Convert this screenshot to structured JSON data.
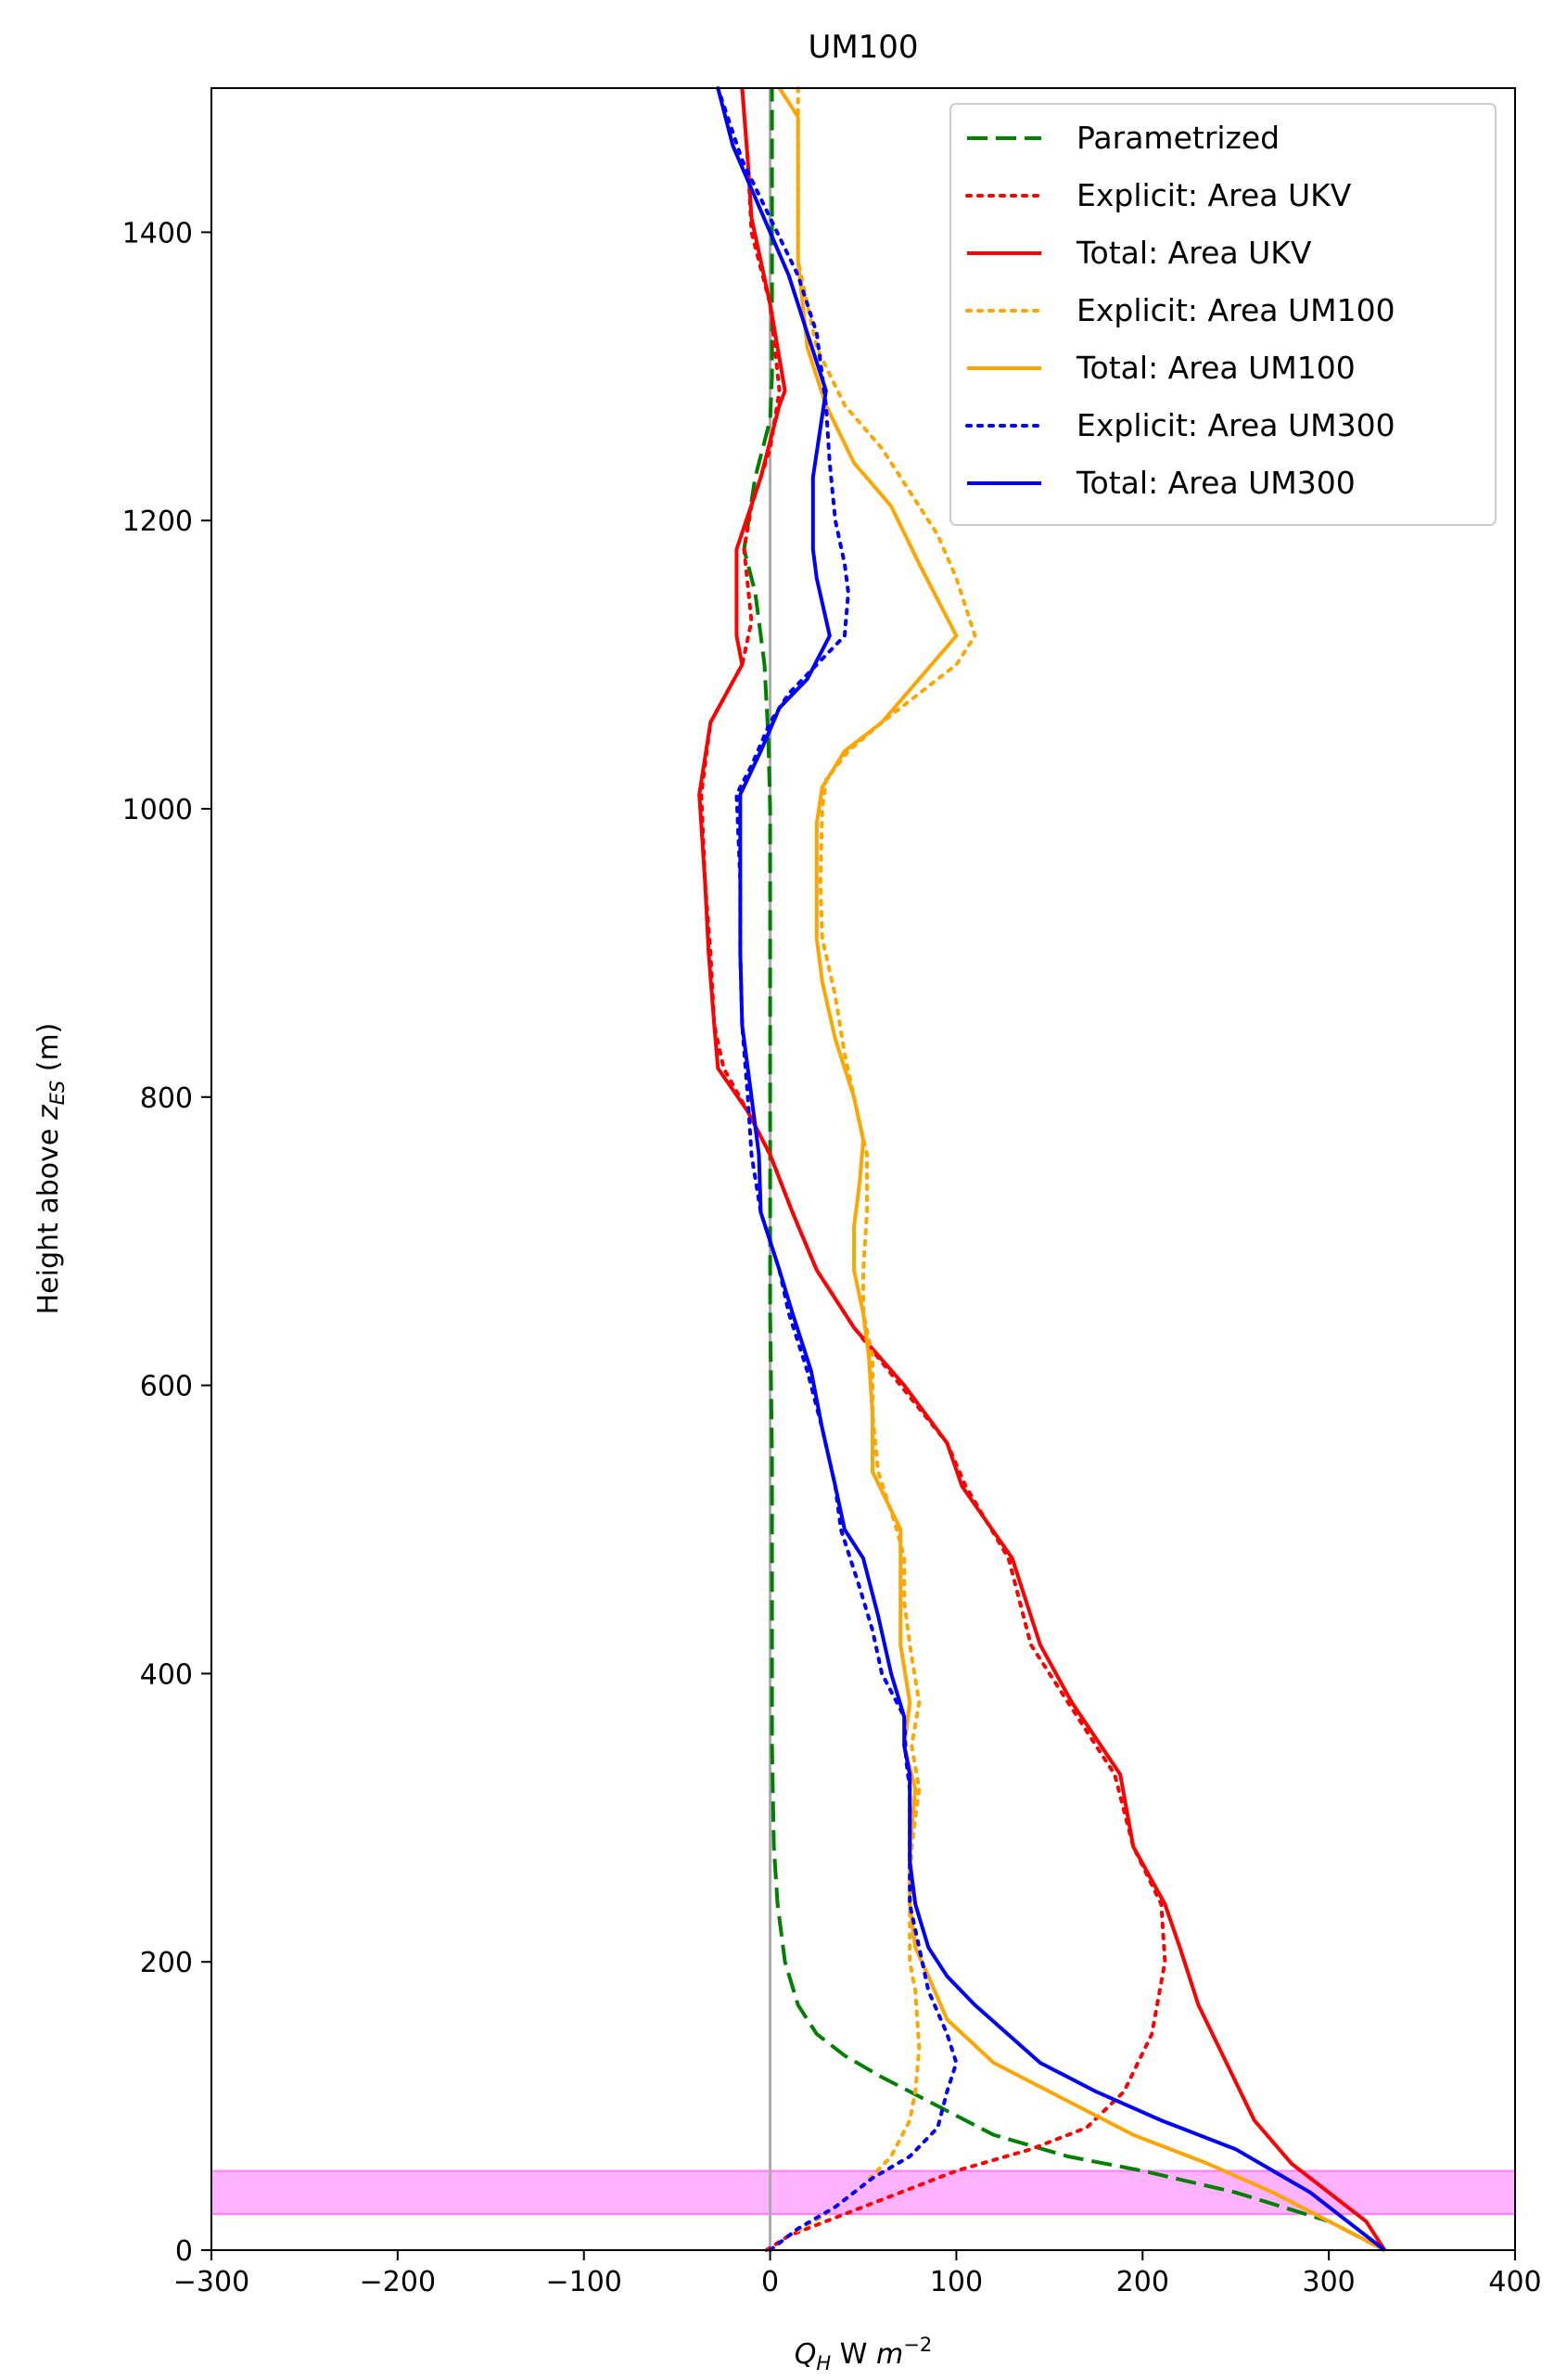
{
  "chart_data": {
    "type": "line",
    "title": "UM100",
    "xlabel_main": "Q",
    "xlabel_sub": "H",
    "xlabel_units": "W",
    "xlabel_unit_var": "m",
    "xlabel_unit_exp": "−2",
    "ylabel_main": "Height above ",
    "ylabel_var": "z",
    "ylabel_sub": "ES",
    "ylabel_units": " (m)",
    "xlim": [
      -300,
      400
    ],
    "ylim": [
      0,
      1500
    ],
    "xticks": [
      -300,
      -200,
      -100,
      0,
      100,
      200,
      300,
      400
    ],
    "xtick_labels": [
      "−300",
      "−200",
      "−100",
      "0",
      "100",
      "200",
      "300",
      "400"
    ],
    "yticks": [
      0,
      200,
      400,
      600,
      800,
      1000,
      1200,
      1400
    ],
    "ytick_labels": [
      "0",
      "200",
      "400",
      "600",
      "800",
      "1000",
      "1200",
      "1400"
    ],
    "grid": false,
    "legend_position": "top-right",
    "vline": {
      "x": 0,
      "color": "#aaaaaa"
    },
    "band": {
      "y0": 25,
      "y1": 55,
      "color": "#ff66ff"
    },
    "series": [
      {
        "name": "Parametrized",
        "color": "#008000",
        "style": "dashed",
        "points": [
          [
            330,
            0
          ],
          [
            300,
            20
          ],
          [
            250,
            40
          ],
          [
            200,
            55
          ],
          [
            160,
            65
          ],
          [
            120,
            80
          ],
          [
            90,
            100
          ],
          [
            60,
            120
          ],
          [
            40,
            135
          ],
          [
            25,
            150
          ],
          [
            15,
            170
          ],
          [
            8,
            200
          ],
          [
            4,
            240
          ],
          [
            2,
            280
          ],
          [
            1,
            350
          ],
          [
            1,
            450
          ],
          [
            1,
            550
          ],
          [
            0,
            650
          ],
          [
            0,
            700
          ],
          [
            0,
            800
          ],
          [
            0,
            900
          ],
          [
            0,
            1000
          ],
          [
            -1,
            1050
          ],
          [
            -3,
            1100
          ],
          [
            -8,
            1150
          ],
          [
            -14,
            1180
          ],
          [
            -8,
            1230
          ],
          [
            0,
            1270
          ],
          [
            1,
            1300
          ],
          [
            1,
            1350
          ],
          [
            1,
            1400
          ],
          [
            1,
            1450
          ],
          [
            1,
            1500
          ]
        ]
      },
      {
        "name": "Explicit: Area UKV",
        "color": "#ff0000",
        "style": "dotted",
        "points": [
          [
            -2,
            0
          ],
          [
            10,
            10
          ],
          [
            30,
            20
          ],
          [
            60,
            35
          ],
          [
            100,
            55
          ],
          [
            140,
            70
          ],
          [
            170,
            85
          ],
          [
            190,
            110
          ],
          [
            205,
            150
          ],
          [
            212,
            200
          ],
          [
            210,
            240
          ],
          [
            195,
            280
          ],
          [
            185,
            330
          ],
          [
            160,
            380
          ],
          [
            140,
            420
          ],
          [
            128,
            480
          ],
          [
            105,
            530
          ],
          [
            95,
            560
          ],
          [
            70,
            600
          ],
          [
            45,
            640
          ],
          [
            25,
            680
          ],
          [
            12,
            720
          ],
          [
            0,
            760
          ],
          [
            -12,
            790
          ],
          [
            -25,
            820
          ],
          [
            -30,
            850
          ],
          [
            -32,
            900
          ],
          [
            -35,
            950
          ],
          [
            -37,
            1010
          ],
          [
            -32,
            1060
          ],
          [
            -15,
            1100
          ],
          [
            -10,
            1130
          ],
          [
            -14,
            1180
          ],
          [
            -10,
            1210
          ],
          [
            0,
            1250
          ],
          [
            5,
            1290
          ],
          [
            0,
            1350
          ],
          [
            -10,
            1400
          ],
          [
            -12,
            1450
          ],
          [
            -15,
            1500
          ]
        ]
      },
      {
        "name": "Total: Area UKV",
        "color": "#ff0000",
        "style": "solid",
        "points": [
          [
            330,
            0
          ],
          [
            320,
            20
          ],
          [
            300,
            40
          ],
          [
            280,
            60
          ],
          [
            260,
            90
          ],
          [
            245,
            130
          ],
          [
            230,
            170
          ],
          [
            220,
            210
          ],
          [
            212,
            240
          ],
          [
            195,
            280
          ],
          [
            188,
            330
          ],
          [
            162,
            380
          ],
          [
            145,
            420
          ],
          [
            130,
            480
          ],
          [
            103,
            530
          ],
          [
            95,
            560
          ],
          [
            72,
            600
          ],
          [
            45,
            640
          ],
          [
            25,
            680
          ],
          [
            12,
            720
          ],
          [
            0,
            760
          ],
          [
            -12,
            790
          ],
          [
            -28,
            820
          ],
          [
            -30,
            850
          ],
          [
            -33,
            900
          ],
          [
            -35,
            950
          ],
          [
            -38,
            1010
          ],
          [
            -32,
            1060
          ],
          [
            -15,
            1100
          ],
          [
            -18,
            1120
          ],
          [
            -18,
            1150
          ],
          [
            -18,
            1180
          ],
          [
            -5,
            1230
          ],
          [
            5,
            1280
          ],
          [
            8,
            1290
          ],
          [
            0,
            1350
          ],
          [
            -10,
            1410
          ],
          [
            -12,
            1450
          ],
          [
            -15,
            1500
          ]
        ]
      },
      {
        "name": "Explicit: Area UM100",
        "color": "#ffa500",
        "style": "dotted",
        "points": [
          [
            0,
            0
          ],
          [
            10,
            10
          ],
          [
            30,
            25
          ],
          [
            50,
            45
          ],
          [
            65,
            65
          ],
          [
            75,
            90
          ],
          [
            78,
            110
          ],
          [
            80,
            140
          ],
          [
            78,
            180
          ],
          [
            75,
            200
          ],
          [
            75,
            240
          ],
          [
            76,
            280
          ],
          [
            80,
            320
          ],
          [
            76,
            350
          ],
          [
            80,
            380
          ],
          [
            75,
            420
          ],
          [
            72,
            450
          ],
          [
            72,
            480
          ],
          [
            68,
            500
          ],
          [
            58,
            540
          ],
          [
            55,
            580
          ],
          [
            55,
            620
          ],
          [
            50,
            650
          ],
          [
            50,
            680
          ],
          [
            52,
            720
          ],
          [
            52,
            760
          ],
          [
            45,
            800
          ],
          [
            40,
            830
          ],
          [
            35,
            870
          ],
          [
            28,
            910
          ],
          [
            27,
            950
          ],
          [
            28,
            1000
          ],
          [
            30,
            1020
          ],
          [
            42,
            1040
          ],
          [
            60,
            1060
          ],
          [
            80,
            1080
          ],
          [
            100,
            1100
          ],
          [
            110,
            1120
          ],
          [
            100,
            1160
          ],
          [
            90,
            1190
          ],
          [
            75,
            1220
          ],
          [
            60,
            1250
          ],
          [
            40,
            1280
          ],
          [
            25,
            1320
          ],
          [
            15,
            1380
          ],
          [
            15,
            1450
          ],
          [
            15,
            1500
          ]
        ]
      },
      {
        "name": "Total: Area UM100",
        "color": "#ffa500",
        "style": "solid",
        "points": [
          [
            330,
            0
          ],
          [
            300,
            20
          ],
          [
            270,
            40
          ],
          [
            235,
            60
          ],
          [
            195,
            80
          ],
          [
            150,
            110
          ],
          [
            120,
            130
          ],
          [
            95,
            160
          ],
          [
            85,
            190
          ],
          [
            78,
            210
          ],
          [
            75,
            240
          ],
          [
            75,
            280
          ],
          [
            78,
            320
          ],
          [
            72,
            350
          ],
          [
            75,
            380
          ],
          [
            70,
            420
          ],
          [
            70,
            450
          ],
          [
            70,
            480
          ],
          [
            70,
            500
          ],
          [
            55,
            540
          ],
          [
            55,
            580
          ],
          [
            53,
            620
          ],
          [
            50,
            650
          ],
          [
            45,
            680
          ],
          [
            45,
            710
          ],
          [
            48,
            740
          ],
          [
            50,
            770
          ],
          [
            45,
            800
          ],
          [
            35,
            840
          ],
          [
            28,
            880
          ],
          [
            25,
            910
          ],
          [
            25,
            950
          ],
          [
            25,
            990
          ],
          [
            28,
            1015
          ],
          [
            40,
            1040
          ],
          [
            60,
            1060
          ],
          [
            80,
            1090
          ],
          [
            100,
            1120
          ],
          [
            80,
            1170
          ],
          [
            65,
            1210
          ],
          [
            45,
            1240
          ],
          [
            30,
            1280
          ],
          [
            20,
            1320
          ],
          [
            15,
            1380
          ],
          [
            15,
            1430
          ],
          [
            15,
            1460
          ],
          [
            15,
            1480
          ],
          [
            5,
            1500
          ]
        ]
      },
      {
        "name": "Explicit: Area UM300",
        "color": "#0000ff",
        "style": "dotted",
        "points": [
          [
            0,
            0
          ],
          [
            15,
            15
          ],
          [
            35,
            30
          ],
          [
            55,
            50
          ],
          [
            75,
            65
          ],
          [
            90,
            85
          ],
          [
            95,
            110
          ],
          [
            100,
            130
          ],
          [
            95,
            150
          ],
          [
            85,
            180
          ],
          [
            80,
            210
          ],
          [
            75,
            240
          ],
          [
            75,
            280
          ],
          [
            75,
            320
          ],
          [
            73,
            340
          ],
          [
            72,
            370
          ],
          [
            60,
            400
          ],
          [
            55,
            430
          ],
          [
            48,
            460
          ],
          [
            38,
            500
          ],
          [
            35,
            530
          ],
          [
            28,
            570
          ],
          [
            20,
            610
          ],
          [
            10,
            650
          ],
          [
            5,
            680
          ],
          [
            -5,
            720
          ],
          [
            -10,
            760
          ],
          [
            -12,
            800
          ],
          [
            -15,
            850
          ],
          [
            -16,
            900
          ],
          [
            -16,
            950
          ],
          [
            -18,
            1010
          ],
          [
            -10,
            1030
          ],
          [
            0,
            1060
          ],
          [
            10,
            1080
          ],
          [
            25,
            1100
          ],
          [
            40,
            1120
          ],
          [
            42,
            1150
          ],
          [
            40,
            1170
          ],
          [
            35,
            1200
          ],
          [
            32,
            1240
          ],
          [
            30,
            1280
          ],
          [
            25,
            1330
          ],
          [
            15,
            1370
          ],
          [
            0,
            1410
          ],
          [
            -15,
            1450
          ],
          [
            -28,
            1500
          ]
        ]
      },
      {
        "name": "Total: Area UM300",
        "color": "#0000ff",
        "style": "solid",
        "points": [
          [
            330,
            0
          ],
          [
            310,
            20
          ],
          [
            290,
            40
          ],
          [
            270,
            55
          ],
          [
            250,
            70
          ],
          [
            210,
            90
          ],
          [
            175,
            110
          ],
          [
            145,
            130
          ],
          [
            110,
            170
          ],
          [
            95,
            190
          ],
          [
            85,
            210
          ],
          [
            78,
            240
          ],
          [
            75,
            270
          ],
          [
            75,
            300
          ],
          [
            75,
            330
          ],
          [
            72,
            350
          ],
          [
            72,
            370
          ],
          [
            65,
            400
          ],
          [
            58,
            440
          ],
          [
            50,
            480
          ],
          [
            40,
            500
          ],
          [
            35,
            530
          ],
          [
            28,
            570
          ],
          [
            22,
            610
          ],
          [
            12,
            650
          ],
          [
            5,
            680
          ],
          [
            -5,
            720
          ],
          [
            -6,
            760
          ],
          [
            -10,
            800
          ],
          [
            -15,
            850
          ],
          [
            -16,
            900
          ],
          [
            -16,
            950
          ],
          [
            -16,
            1010
          ],
          [
            -5,
            1040
          ],
          [
            5,
            1070
          ],
          [
            20,
            1090
          ],
          [
            32,
            1120
          ],
          [
            25,
            1160
          ],
          [
            23,
            1180
          ],
          [
            23,
            1230
          ],
          [
            30,
            1290
          ],
          [
            20,
            1330
          ],
          [
            10,
            1370
          ],
          [
            0,
            1400
          ],
          [
            -10,
            1430
          ],
          [
            -20,
            1460
          ],
          [
            -28,
            1500
          ]
        ]
      }
    ]
  }
}
